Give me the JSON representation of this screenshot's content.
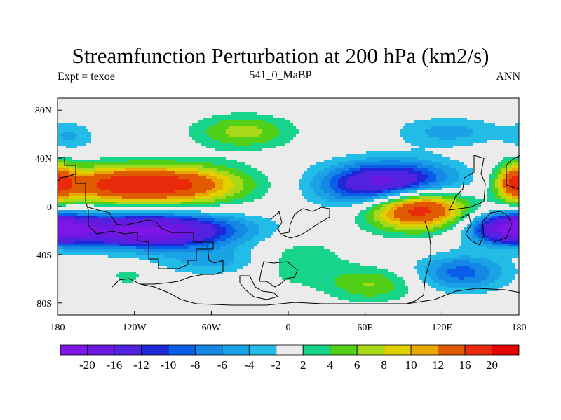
{
  "chart_data": {
    "type": "heatmap",
    "title": "Streamfunction Perturbation at 200 hPa (km2/s)",
    "subtitle_left": "Expt = texoe",
    "subtitle_center": "541_0_MaBP",
    "subtitle_right": "ANN",
    "xlim": [
      -180,
      180
    ],
    "ylim": [
      -90,
      90
    ],
    "x_ticks": [
      {
        "value": -180,
        "label": "180"
      },
      {
        "value": -120,
        "label": "120W"
      },
      {
        "value": -60,
        "label": "60W"
      },
      {
        "value": 0,
        "label": "0"
      },
      {
        "value": 60,
        "label": "60E"
      },
      {
        "value": 120,
        "label": "120E"
      },
      {
        "value": 180,
        "label": "180"
      }
    ],
    "y_ticks": [
      {
        "value": 80,
        "label": "80N"
      },
      {
        "value": 40,
        "label": "40N"
      },
      {
        "value": 0,
        "label": "0"
      },
      {
        "value": -40,
        "label": "40S"
      },
      {
        "value": -80,
        "label": "80S"
      }
    ],
    "colorbar": {
      "levels": [
        -20,
        -16,
        -12,
        -10,
        -8,
        -6,
        -4,
        -2,
        2,
        4,
        6,
        8,
        10,
        12,
        16,
        20
      ],
      "colors": [
        "#7d16e6",
        "#6a18e0",
        "#5322e0",
        "#1e28d8",
        "#0a5de6",
        "#1488e4",
        "#1aa2e6",
        "#22bce6",
        "#ebebeb",
        "#18d48a",
        "#52d018",
        "#a8d818",
        "#e0d000",
        "#e8a800",
        "#e05a00",
        "#e82a0a",
        "#e60000"
      ]
    },
    "features": [
      {
        "lon": 100,
        "lat": 0,
        "value": 22,
        "a": 38,
        "b": 18
      },
      {
        "lon": -90,
        "lat": 18,
        "value": 17,
        "a": 55,
        "b": 16
      },
      {
        "lon": -145,
        "lat": 18,
        "value": 11,
        "a": 40,
        "b": 15
      },
      {
        "lon": 80,
        "lat": 18,
        "value": -21,
        "a": 50,
        "b": 18
      },
      {
        "lon": -110,
        "lat": -20,
        "value": -22,
        "a": 70,
        "b": 14
      },
      {
        "lon": 175,
        "lat": -18,
        "value": -18,
        "a": 30,
        "b": 12
      },
      {
        "lon": 178,
        "lat": 20,
        "value": 14,
        "a": 15,
        "b": 16
      },
      {
        "lon": -35,
        "lat": 62,
        "value": 7,
        "a": 38,
        "b": 14
      },
      {
        "lon": 65,
        "lat": -65,
        "value": 6,
        "a": 35,
        "b": 14
      },
      {
        "lon": 125,
        "lat": 62,
        "value": -5,
        "a": 40,
        "b": 12
      },
      {
        "lon": -170,
        "lat": 58,
        "value": -4,
        "a": 20,
        "b": 12
      },
      {
        "lon": 135,
        "lat": -55,
        "value": -9,
        "a": 35,
        "b": 15
      },
      {
        "lon": -125,
        "lat": -58,
        "value": 4,
        "a": 10,
        "b": 6
      },
      {
        "lon": -55,
        "lat": -45,
        "value": -5,
        "a": 45,
        "b": 12
      },
      {
        "lon": 5,
        "lat": -45,
        "value": 4,
        "a": 40,
        "b": 20
      }
    ]
  }
}
